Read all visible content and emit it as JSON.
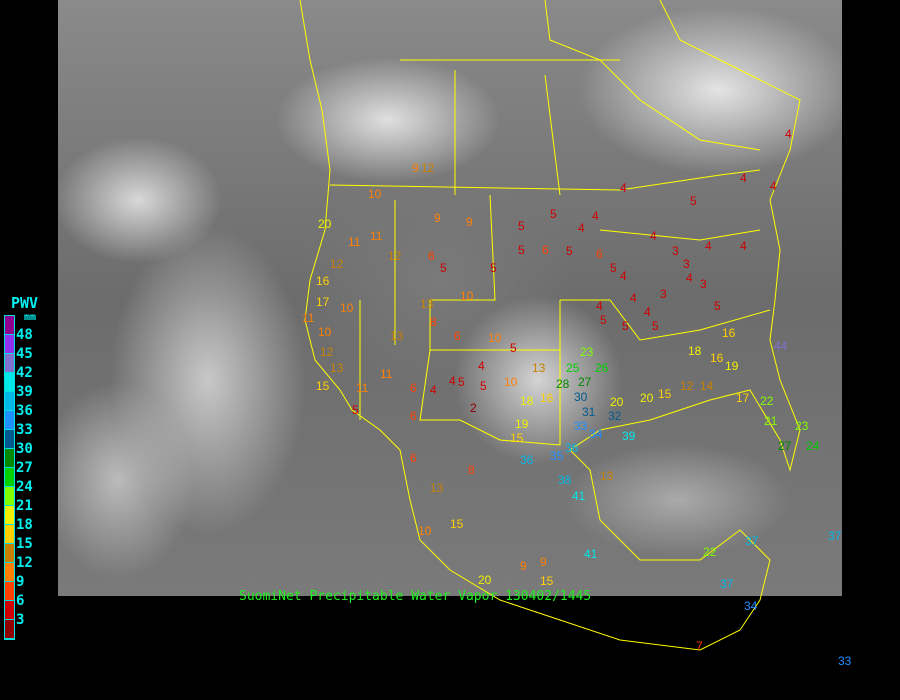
{
  "caption": "SuomiNet Precipitable Water Vapor 130402/1445",
  "legend": {
    "title": "PWV",
    "unit": "mm",
    "labels": [
      "48",
      "45",
      "42",
      "39",
      "36",
      "33",
      "30",
      "27",
      "24",
      "21",
      "18",
      "15",
      "12",
      "9",
      "6",
      "3"
    ],
    "colors": [
      "#900090",
      "#9030f0",
      "#8070d0",
      "#00e8e8",
      "#00b8e8",
      "#2090ff",
      "#005a90",
      "#008800",
      "#00d000",
      "#80ff00",
      "#f0f000",
      "#ffd000",
      "#c88000",
      "#ff8000",
      "#ff4000",
      "#d00000",
      "#900000"
    ]
  },
  "boundary_color": "#ffff00",
  "stations": [
    9,
    10,
    9,
    9,
    5,
    5,
    4,
    4,
    4,
    5,
    4,
    4,
    4,
    4,
    4,
    4,
    3,
    3,
    20,
    11,
    11,
    12,
    16,
    17,
    10,
    12,
    13,
    8,
    6,
    5,
    5,
    5,
    6,
    5,
    6,
    5,
    4,
    4,
    4,
    3,
    4,
    3,
    5,
    5,
    5,
    5,
    4,
    11,
    10,
    12,
    13,
    15,
    5,
    6,
    5,
    4,
    6,
    13,
    10,
    10,
    11,
    11,
    6,
    4,
    4,
    2,
    5,
    6,
    8,
    10,
    5,
    15,
    13,
    18,
    16,
    19,
    25,
    23,
    26,
    28,
    27,
    30,
    31,
    32,
    33,
    34,
    35,
    36,
    38,
    41,
    20,
    20,
    15,
    12,
    14,
    18,
    16,
    19,
    22,
    27,
    21,
    23,
    24,
    36,
    39,
    37,
    37,
    22,
    7,
    9,
    9,
    15,
    20,
    13,
    13,
    10,
    15,
    41,
    34,
    33,
    37,
    44,
    17,
    16,
    12
  ]
}
